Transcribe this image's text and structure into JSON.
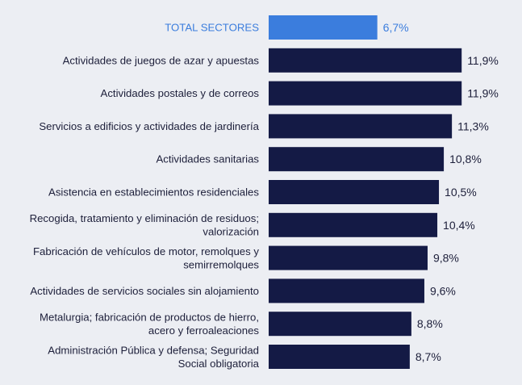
{
  "chart_data": {
    "type": "bar",
    "orientation": "horizontal",
    "title": "",
    "xlabel": "",
    "ylabel": "",
    "xlim": [
      0,
      12
    ],
    "grid": false,
    "legend": "none",
    "categories": [
      [
        "TOTAL SECTORES"
      ],
      [
        "Actividades de juegos de azar y apuestas"
      ],
      [
        "Actividades postales y de correos"
      ],
      [
        "Servicios a edificios y actividades de jardinería"
      ],
      [
        "Actividades sanitarias"
      ],
      [
        "Asistencia en establecimientos residenciales"
      ],
      [
        "Recogida, tratamiento y eliminación de residuos;",
        "valorización"
      ],
      [
        "Fabricación de vehículos de motor, remolques y",
        "semirremolques"
      ],
      [
        "Actividades de servicios sociales sin alojamiento"
      ],
      [
        "Metalurgia; fabricación de productos de hierro,",
        "acero y ferroaleaciones"
      ],
      [
        "Administración Pública y defensa; Seguridad",
        "Social obligatoria"
      ]
    ],
    "values": [
      6.7,
      11.9,
      11.9,
      11.3,
      10.8,
      10.5,
      10.4,
      9.8,
      9.6,
      8.8,
      8.7
    ],
    "value_labels": [
      "6,7%",
      "11,9%",
      "11,9%",
      "11,3%",
      "10,8%",
      "10,5%",
      "10,4%",
      "9,8%",
      "9,6%",
      "8,8%",
      "8,7%"
    ],
    "highlight_index": 0,
    "colors": {
      "highlight": "#3b7ddd",
      "bar": "#141a45",
      "highlight_text": "#3b7ddd",
      "text": "#1d1f3a",
      "background": "#eceef3"
    }
  }
}
